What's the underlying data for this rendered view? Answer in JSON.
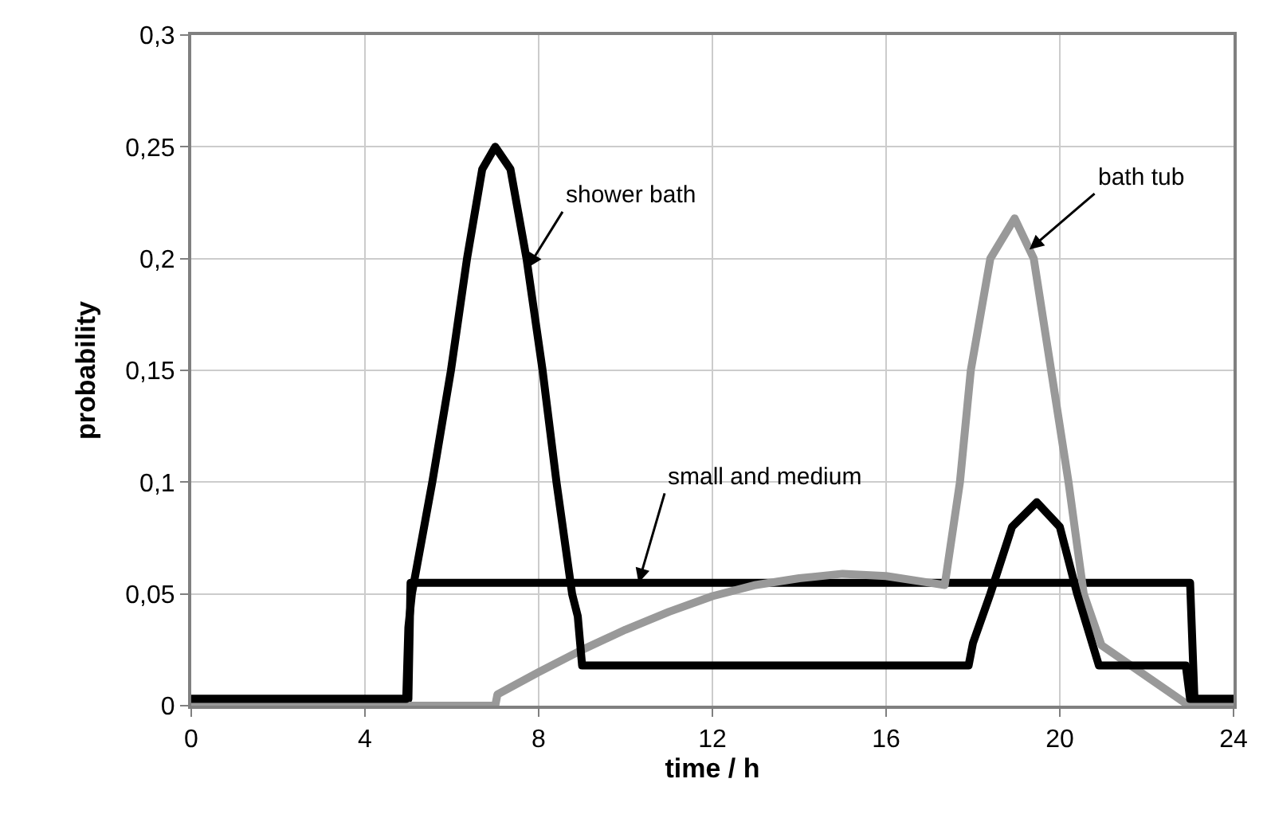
{
  "chart_data": {
    "type": "line",
    "xlabel": "time / h",
    "ylabel": "probability",
    "xlim": [
      0,
      24
    ],
    "xticks": [
      0,
      4,
      8,
      12,
      16,
      20,
      24
    ],
    "ylim": [
      0,
      0.3
    ],
    "yticks": [
      {
        "value": 0,
        "label": "0"
      },
      {
        "value": 0.05,
        "label": "0,05"
      },
      {
        "value": 0.1,
        "label": "0,1"
      },
      {
        "value": 0.15,
        "label": "0,15"
      },
      {
        "value": 0.2,
        "label": "0,2"
      },
      {
        "value": 0.25,
        "label": "0,25"
      },
      {
        "value": 0.3,
        "label": "0,3"
      }
    ],
    "grid": true,
    "legend": false,
    "marker": "none",
    "line_style": "solid",
    "series": [
      {
        "name": "small and medium",
        "color": "#000000",
        "x": [
          0,
          5,
          5.05,
          23,
          23.1,
          24
        ],
        "values": [
          0.003,
          0.003,
          0.055,
          0.055,
          0.003,
          0.003
        ]
      },
      {
        "name": "bath tub",
        "color": "#999999",
        "x": [
          0,
          7,
          7.05,
          8,
          9,
          10,
          11,
          12,
          13,
          14,
          15,
          16,
          17,
          17.35,
          17.7,
          17.95,
          18.4,
          18.96,
          19.4,
          19.8,
          20.2,
          20.55,
          20.96,
          22.9,
          23,
          24
        ],
        "values": [
          0,
          0,
          0.005,
          0.015,
          0.025,
          0.034,
          0.042,
          0.049,
          0.054,
          0.057,
          0.059,
          0.058,
          0.055,
          0.054,
          0.1,
          0.15,
          0.2,
          0.218,
          0.2,
          0.15,
          0.1,
          0.05,
          0.027,
          0.001,
          0,
          0
        ]
      },
      {
        "name": "shower bath",
        "color": "#000000",
        "x": [
          0,
          4.95,
          5.0,
          5.08,
          5.55,
          5.98,
          6.35,
          6.7,
          7.0,
          7.35,
          7.72,
          8.09,
          8.41,
          8.77,
          8.9,
          9.0,
          17.9,
          18.0,
          18.4,
          18.9,
          19.47,
          20.0,
          20.4,
          20.9,
          22.9,
          23.0,
          24
        ],
        "values": [
          0.003,
          0.003,
          0.035,
          0.05,
          0.1,
          0.15,
          0.2,
          0.24,
          0.25,
          0.24,
          0.2,
          0.15,
          0.1,
          0.05,
          0.04,
          0.018,
          0.018,
          0.028,
          0.05,
          0.08,
          0.091,
          0.08,
          0.05,
          0.018,
          0.018,
          0.003,
          0.003
        ]
      }
    ]
  }
}
